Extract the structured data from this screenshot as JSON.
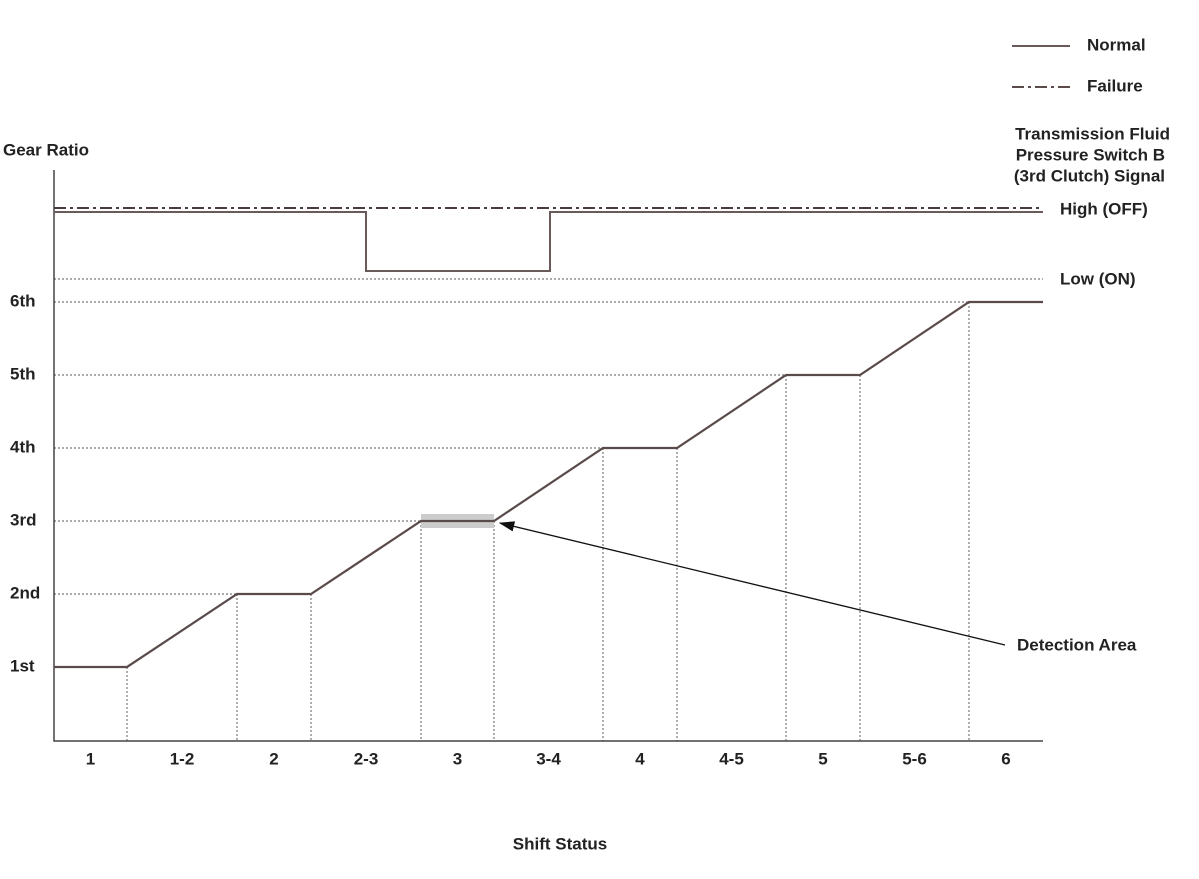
{
  "legend": {
    "items": [
      "Normal",
      "Failure"
    ]
  },
  "axes": {
    "y_label": "Gear Ratio",
    "x_label": "Shift Status",
    "y_labels": [
      "1st",
      "2nd",
      "3rd",
      "4th",
      "5th",
      "6th"
    ],
    "x_labels": [
      "1",
      "1-2",
      "2",
      "2-3",
      "3",
      "3-4",
      "4",
      "4-5",
      "5",
      "5-6",
      "6"
    ]
  },
  "signal": {
    "title_lines": [
      "Transmission Fluid",
      "Pressure Switch B",
      "(3rd Clutch) Signal"
    ],
    "high": "High (OFF)",
    "low": "Low (ON)"
  },
  "annotation": "Detection Area"
}
